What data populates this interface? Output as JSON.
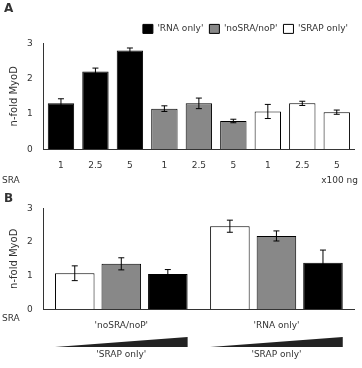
{
  "chart_data": [
    {
      "type": "bar",
      "title": "A",
      "ylabel": "n-fold MyoD",
      "categories": [
        "1",
        "2.5",
        "5",
        "1",
        "2.5",
        "5",
        "1",
        "2.5",
        "5"
      ],
      "series": [
        {
          "name": "'RNA only'",
          "color": "#000000",
          "values": [
            1.3,
            2.2,
            2.8,
            null,
            null,
            null,
            null,
            null,
            null
          ],
          "errors": [
            0.13,
            0.1,
            0.07,
            null,
            null,
            null,
            null,
            null,
            null
          ]
        },
        {
          "name": "'noSRA/noP'",
          "color": "#888888",
          "values": [
            null,
            null,
            null,
            1.15,
            1.3,
            0.8,
            null,
            null,
            null
          ],
          "errors": [
            null,
            null,
            null,
            0.08,
            0.15,
            0.05,
            null,
            null,
            null
          ]
        },
        {
          "name": "'SRAP only'",
          "color": "#ffffff",
          "values": [
            null,
            null,
            null,
            null,
            null,
            null,
            1.07,
            1.3,
            1.05
          ],
          "errors": [
            null,
            null,
            null,
            null,
            null,
            null,
            0.2,
            0.06,
            0.06
          ]
        }
      ],
      "ylim": [
        0,
        3
      ],
      "yticks": [
        0,
        1,
        2,
        3
      ],
      "grid": false,
      "legend": "upper right",
      "annotations": [
        "SRA",
        "x100 ng"
      ]
    },
    {
      "type": "bar",
      "title": "B",
      "ylabel": "n-fold MyoD",
      "categories": [
        "'noSRA/noP'",
        "'RNA only'"
      ],
      "series": [
        {
          "color": "#ffffff",
          "values": [
            1.07,
            2.47
          ],
          "errors": [
            0.22,
            0.18
          ]
        },
        {
          "color": "#888888",
          "values": [
            1.35,
            2.18
          ],
          "errors": [
            0.18,
            0.15
          ]
        },
        {
          "color": "#000000",
          "values": [
            1.05,
            1.38
          ],
          "errors": [
            0.13,
            0.38
          ]
        }
      ],
      "ylim": [
        0,
        3
      ],
      "yticks": [
        0,
        1,
        2,
        3
      ],
      "grid": false,
      "annotations": [
        "SRA",
        "'SRAP only'",
        "'SRAP only'"
      ]
    }
  ]
}
